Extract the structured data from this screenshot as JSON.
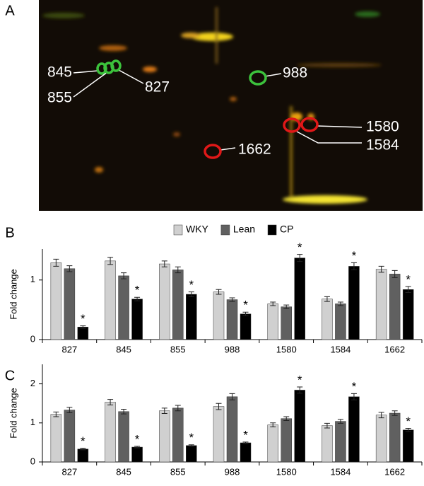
{
  "panels": [
    "A",
    "B",
    "C"
  ],
  "gel": {
    "spots": [
      {
        "label": "845",
        "color": "#3cc23c"
      },
      {
        "label": "855",
        "color": "#3cc23c"
      },
      {
        "label": "827",
        "color": "#3cc23c"
      },
      {
        "label": "988",
        "color": "#3cc23c"
      },
      {
        "label": "1580",
        "color": "#e01818"
      },
      {
        "label": "1584",
        "color": "#e01818"
      },
      {
        "label": "1662",
        "color": "#e01818"
      }
    ]
  },
  "chart_data": [
    {
      "type": "bar",
      "ylabel": "Fold change",
      "categories": [
        "827",
        "845",
        "855",
        "988",
        "1580",
        "1584",
        "1662"
      ],
      "ylim": [
        0,
        1.52
      ],
      "yticks": [
        0,
        1
      ],
      "legend": "top",
      "series": [
        {
          "name": "WKY",
          "color": "#d0d0d0",
          "values": [
            1.29,
            1.32,
            1.27,
            0.8,
            0.6,
            0.68,
            1.18
          ],
          "errors": [
            0.06,
            0.06,
            0.05,
            0.04,
            0.03,
            0.04,
            0.05
          ]
        },
        {
          "name": "Lean",
          "color": "#606060",
          "values": [
            1.19,
            1.07,
            1.17,
            0.67,
            0.55,
            0.6,
            1.1
          ],
          "errors": [
            0.05,
            0.05,
            0.05,
            0.03,
            0.03,
            0.03,
            0.06
          ]
        },
        {
          "name": "CP",
          "color": "#000000",
          "values": [
            0.21,
            0.68,
            0.76,
            0.43,
            1.37,
            1.23,
            0.84
          ],
          "errors": [
            0.02,
            0.03,
            0.04,
            0.03,
            0.06,
            0.06,
            0.05
          ],
          "markers": [
            "*",
            "*",
            "*",
            "*",
            "*",
            "*",
            "*"
          ]
        }
      ]
    },
    {
      "type": "bar",
      "ylabel": "Fold change",
      "categories": [
        "827",
        "845",
        "855",
        "988",
        "1580",
        "1584",
        "1662"
      ],
      "ylim": [
        0,
        2.5
      ],
      "yticks": [
        0,
        1,
        2
      ],
      "legend": false,
      "series": [
        {
          "name": "WKY",
          "color": "#d0d0d0",
          "values": [
            1.22,
            1.53,
            1.31,
            1.42,
            0.95,
            0.93,
            1.2
          ],
          "errors": [
            0.06,
            0.07,
            0.07,
            0.08,
            0.05,
            0.06,
            0.07
          ]
        },
        {
          "name": "Lean",
          "color": "#606060",
          "values": [
            1.33,
            1.29,
            1.38,
            1.67,
            1.11,
            1.04,
            1.25
          ],
          "errors": [
            0.07,
            0.06,
            0.07,
            0.08,
            0.05,
            0.05,
            0.06
          ]
        },
        {
          "name": "CP",
          "color": "#000000",
          "values": [
            0.33,
            0.38,
            0.42,
            0.49,
            1.84,
            1.67,
            0.82
          ],
          "errors": [
            0.02,
            0.02,
            0.02,
            0.02,
            0.08,
            0.08,
            0.04
          ],
          "markers": [
            "*",
            "*",
            "*",
            "*",
            "*",
            "*",
            "*"
          ]
        }
      ]
    }
  ]
}
